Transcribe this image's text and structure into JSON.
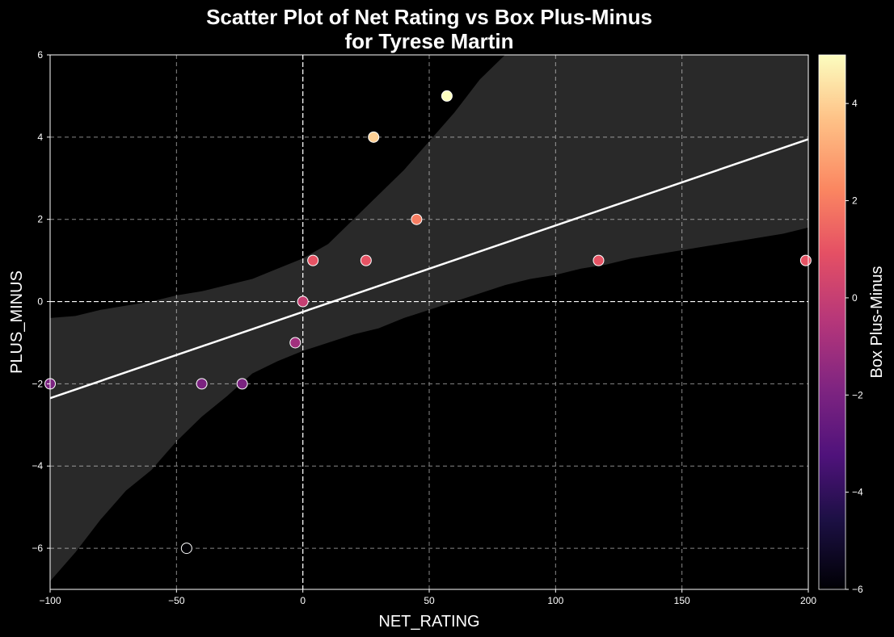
{
  "chart_data": {
    "type": "scatter",
    "title": "Scatter Plot of Net Rating vs Box Plus-Minus\nfor Tyrese Martin",
    "xlabel": "NET_RATING",
    "ylabel": "PLUS_MINUS",
    "colorbar_label": "Box Plus-Minus",
    "xlim": [
      -100,
      200
    ],
    "ylim": [
      -7,
      6
    ],
    "xticks": [
      -100,
      -50,
      0,
      50,
      100,
      150,
      200
    ],
    "yticks": [
      -6,
      -4,
      -2,
      0,
      2,
      4,
      6
    ],
    "colorbar_range": [
      -6,
      5
    ],
    "colorbar_ticks": [
      -6,
      -4,
      -2,
      0,
      2,
      4
    ],
    "colormap": "magma",
    "grid": true,
    "reference_lines": {
      "x": 0,
      "y": 0
    },
    "points": [
      {
        "x": -100,
        "y": -2
      },
      {
        "x": -46,
        "y": -6
      },
      {
        "x": -40,
        "y": -2
      },
      {
        "x": -24,
        "y": -2
      },
      {
        "x": -3,
        "y": -1
      },
      {
        "x": 0,
        "y": 0
      },
      {
        "x": 4,
        "y": 1
      },
      {
        "x": 25,
        "y": 1
      },
      {
        "x": 28,
        "y": 4
      },
      {
        "x": 45,
        "y": 2
      },
      {
        "x": 57,
        "y": 5
      },
      {
        "x": 117,
        "y": 1
      },
      {
        "x": 199,
        "y": 1
      }
    ],
    "regression_line": {
      "x": [
        -100,
        200
      ],
      "y": [
        -2.35,
        3.95
      ]
    },
    "confidence_band": {
      "x": [
        -100,
        -90,
        -80,
        -70,
        -60,
        -50,
        -40,
        -30,
        -20,
        -10,
        0,
        10,
        20,
        30,
        40,
        50,
        60,
        70,
        80,
        90,
        100,
        110,
        120,
        130,
        140,
        150,
        160,
        170,
        180,
        190,
        200
      ],
      "upper": [
        -0.4,
        -0.35,
        -0.2,
        -0.1,
        0.0,
        0.15,
        0.25,
        0.4,
        0.55,
        0.8,
        1.05,
        1.4,
        2.0,
        2.6,
        3.2,
        3.9,
        4.6,
        5.4,
        6.0,
        6.7,
        7.4,
        8.0,
        8.6,
        9.2,
        9.8,
        10.4,
        11.0,
        11.6,
        12.2,
        12.8,
        13.4
      ],
      "lower": [
        -6.8,
        -6.1,
        -5.3,
        -4.6,
        -4.1,
        -3.4,
        -2.8,
        -2.3,
        -1.75,
        -1.45,
        -1.2,
        -1.0,
        -0.8,
        -0.65,
        -0.4,
        -0.2,
        0.0,
        0.2,
        0.4,
        0.55,
        0.65,
        0.8,
        0.9,
        1.05,
        1.15,
        1.25,
        1.35,
        1.45,
        1.55,
        1.65,
        1.8
      ]
    }
  }
}
